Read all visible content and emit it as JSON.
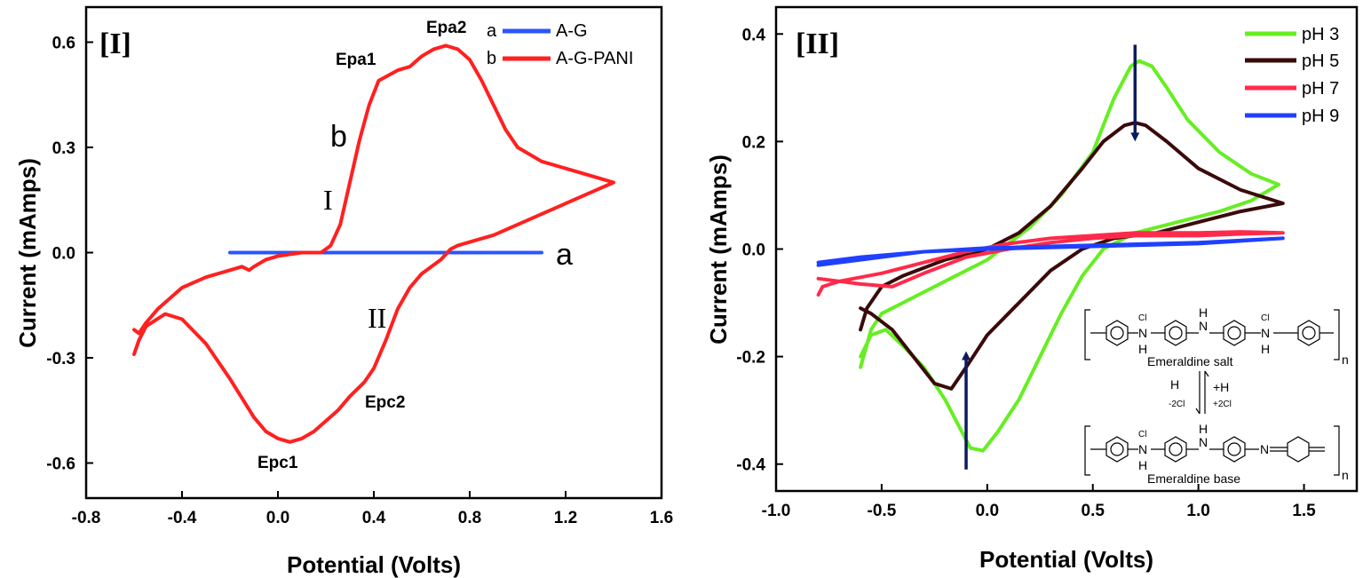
{
  "chart_data": [
    {
      "type": "line",
      "panel_label": "[I]",
      "xlabel": "Potential (Volts)",
      "ylabel": "Current (mAmps)",
      "xlim": [
        -0.8,
        1.6
      ],
      "ylim": [
        -0.7,
        0.7
      ],
      "xticks": [
        -0.8,
        -0.4,
        0.0,
        0.4,
        0.8,
        1.2,
        1.6
      ],
      "yticks": [
        -0.6,
        -0.3,
        0.0,
        0.3,
        0.6
      ],
      "xtick_labels": [
        "-0.8",
        "-0.4",
        "0.0",
        "0.4",
        "0.8",
        "1.2",
        "1.6"
      ],
      "ytick_labels": [
        "-0.6",
        "-0.3",
        "0.0",
        "0.3",
        "0.6"
      ],
      "legend_position": "top-right",
      "series": [
        {
          "key": "a",
          "name": "A-G",
          "color": "#2b54ff",
          "points": [
            [
              -0.2,
              0.0
            ],
            [
              1.1,
              0.0
            ]
          ]
        },
        {
          "key": "b",
          "name": "A-G-PANI",
          "color": "#ff2020",
          "points": [
            [
              -0.6,
              -0.22
            ],
            [
              -0.58,
              -0.23
            ],
            [
              -0.55,
              -0.2
            ],
            [
              -0.5,
              -0.16
            ],
            [
              -0.4,
              -0.1
            ],
            [
              -0.3,
              -0.07
            ],
            [
              -0.2,
              -0.05
            ],
            [
              -0.15,
              -0.04
            ],
            [
              -0.12,
              -0.05
            ],
            [
              -0.1,
              -0.04
            ],
            [
              -0.05,
              -0.02
            ],
            [
              0.0,
              -0.01
            ],
            [
              0.1,
              0.0
            ],
            [
              0.18,
              0.0
            ],
            [
              0.22,
              0.02
            ],
            [
              0.26,
              0.08
            ],
            [
              0.3,
              0.2
            ],
            [
              0.34,
              0.32
            ],
            [
              0.38,
              0.42
            ],
            [
              0.42,
              0.49
            ],
            [
              0.5,
              0.52
            ],
            [
              0.55,
              0.53
            ],
            [
              0.6,
              0.56
            ],
            [
              0.65,
              0.58
            ],
            [
              0.7,
              0.59
            ],
            [
              0.75,
              0.58
            ],
            [
              0.8,
              0.55
            ],
            [
              0.85,
              0.49
            ],
            [
              0.9,
              0.42
            ],
            [
              0.95,
              0.35
            ],
            [
              1.0,
              0.3
            ],
            [
              1.1,
              0.26
            ],
            [
              1.2,
              0.24
            ],
            [
              1.3,
              0.22
            ],
            [
              1.4,
              0.2
            ],
            [
              1.3,
              0.17
            ],
            [
              1.2,
              0.14
            ],
            [
              1.1,
              0.11
            ],
            [
              1.0,
              0.08
            ],
            [
              0.9,
              0.05
            ],
            [
              0.8,
              0.03
            ],
            [
              0.75,
              0.02
            ],
            [
              0.72,
              0.01
            ],
            [
              0.68,
              -0.02
            ],
            [
              0.6,
              -0.06
            ],
            [
              0.55,
              -0.1
            ],
            [
              0.5,
              -0.16
            ],
            [
              0.45,
              -0.25
            ],
            [
              0.4,
              -0.33
            ],
            [
              0.36,
              -0.37
            ],
            [
              0.3,
              -0.41
            ],
            [
              0.25,
              -0.45
            ],
            [
              0.2,
              -0.48
            ],
            [
              0.15,
              -0.51
            ],
            [
              0.1,
              -0.53
            ],
            [
              0.05,
              -0.54
            ],
            [
              0.0,
              -0.53
            ],
            [
              -0.05,
              -0.51
            ],
            [
              -0.1,
              -0.47
            ],
            [
              -0.2,
              -0.36
            ],
            [
              -0.3,
              -0.26
            ],
            [
              -0.4,
              -0.19
            ],
            [
              -0.47,
              -0.175
            ],
            [
              -0.55,
              -0.21
            ],
            [
              -0.58,
              -0.25
            ],
            [
              -0.6,
              -0.29
            ]
          ]
        }
      ],
      "annotations": {
        "Epa1": "Epa1",
        "Epa2": "Epa2",
        "Epc1": "Epc1",
        "Epc2": "Epc2",
        "b": "b",
        "a": "a",
        "I": "I",
        "II": "II"
      }
    },
    {
      "type": "line",
      "panel_label": "[II]",
      "xlabel": "Potential (Volts)",
      "ylabel": "Current (mAmps)",
      "xlim": [
        -1.0,
        1.75
      ],
      "ylim": [
        -0.45,
        0.45
      ],
      "xticks": [
        -1.0,
        -0.5,
        0.0,
        0.5,
        1.0,
        1.5
      ],
      "yticks": [
        -0.4,
        -0.2,
        0.0,
        0.2,
        0.4
      ],
      "xtick_labels": [
        "-1.0",
        "-0.5",
        "0.0",
        "0.5",
        "1.0",
        "1.5"
      ],
      "ytick_labels": [
        "-0.4",
        "-0.2",
        "0.0",
        "0.2",
        "0.4"
      ],
      "legend_position": "top-right",
      "series": [
        {
          "name": "pH 3",
          "color": "#66ee22",
          "points": [
            [
              -0.6,
              -0.22
            ],
            [
              -0.55,
              -0.15
            ],
            [
              -0.5,
              -0.12
            ],
            [
              -0.4,
              -0.1
            ],
            [
              -0.2,
              -0.06
            ],
            [
              0.0,
              -0.02
            ],
            [
              0.2,
              0.04
            ],
            [
              0.35,
              0.1
            ],
            [
              0.5,
              0.18
            ],
            [
              0.6,
              0.28
            ],
            [
              0.68,
              0.34
            ],
            [
              0.72,
              0.35
            ],
            [
              0.78,
              0.34
            ],
            [
              0.85,
              0.3
            ],
            [
              0.95,
              0.24
            ],
            [
              1.1,
              0.18
            ],
            [
              1.25,
              0.14
            ],
            [
              1.38,
              0.12
            ],
            [
              1.25,
              0.09
            ],
            [
              1.1,
              0.07
            ],
            [
              0.9,
              0.05
            ],
            [
              0.7,
              0.03
            ],
            [
              0.55,
              0.0
            ],
            [
              0.45,
              -0.05
            ],
            [
              0.35,
              -0.12
            ],
            [
              0.25,
              -0.2
            ],
            [
              0.15,
              -0.28
            ],
            [
              0.05,
              -0.34
            ],
            [
              -0.02,
              -0.375
            ],
            [
              -0.08,
              -0.37
            ],
            [
              -0.12,
              -0.34
            ],
            [
              -0.2,
              -0.28
            ],
            [
              -0.3,
              -0.22
            ],
            [
              -0.4,
              -0.18
            ],
            [
              -0.48,
              -0.15
            ],
            [
              -0.55,
              -0.16
            ],
            [
              -0.6,
              -0.2
            ]
          ]
        },
        {
          "name": "pH 5",
          "color": "#3a0a0a",
          "points": [
            [
              -0.6,
              -0.15
            ],
            [
              -0.57,
              -0.11
            ],
            [
              -0.5,
              -0.07
            ],
            [
              -0.4,
              -0.05
            ],
            [
              -0.2,
              -0.02
            ],
            [
              0.0,
              0.0
            ],
            [
              0.15,
              0.03
            ],
            [
              0.3,
              0.08
            ],
            [
              0.45,
              0.15
            ],
            [
              0.55,
              0.2
            ],
            [
              0.65,
              0.23
            ],
            [
              0.7,
              0.235
            ],
            [
              0.75,
              0.23
            ],
            [
              0.85,
              0.2
            ],
            [
              1.0,
              0.15
            ],
            [
              1.2,
              0.11
            ],
            [
              1.4,
              0.085
            ],
            [
              1.2,
              0.07
            ],
            [
              1.0,
              0.05
            ],
            [
              0.8,
              0.03
            ],
            [
              0.6,
              0.02
            ],
            [
              0.45,
              0.0
            ],
            [
              0.3,
              -0.04
            ],
            [
              0.15,
              -0.1
            ],
            [
              0.0,
              -0.16
            ],
            [
              -0.1,
              -0.22
            ],
            [
              -0.17,
              -0.26
            ],
            [
              -0.25,
              -0.25
            ],
            [
              -0.35,
              -0.2
            ],
            [
              -0.45,
              -0.15
            ],
            [
              -0.55,
              -0.12
            ],
            [
              -0.6,
              -0.11
            ]
          ]
        },
        {
          "name": "pH 7",
          "color": "#ff2a4a",
          "points": [
            [
              -0.8,
              -0.085
            ],
            [
              -0.78,
              -0.07
            ],
            [
              -0.7,
              -0.06
            ],
            [
              -0.5,
              -0.045
            ],
            [
              -0.3,
              -0.025
            ],
            [
              -0.1,
              -0.005
            ],
            [
              0.1,
              0.01
            ],
            [
              0.3,
              0.02
            ],
            [
              0.5,
              0.025
            ],
            [
              0.7,
              0.03
            ],
            [
              1.0,
              0.03
            ],
            [
              1.2,
              0.032
            ],
            [
              1.4,
              0.03
            ],
            [
              1.2,
              0.028
            ],
            [
              1.0,
              0.025
            ],
            [
              0.7,
              0.025
            ],
            [
              0.5,
              0.02
            ],
            [
              0.3,
              0.012
            ],
            [
              0.1,
              0.0
            ],
            [
              -0.1,
              -0.015
            ],
            [
              -0.3,
              -0.045
            ],
            [
              -0.45,
              -0.07
            ],
            [
              -0.6,
              -0.065
            ],
            [
              -0.7,
              -0.06
            ],
            [
              -0.8,
              -0.055
            ]
          ]
        },
        {
          "name": "pH 9",
          "color": "#2040ff",
          "points": [
            [
              -0.8,
              -0.025
            ],
            [
              -0.6,
              -0.015
            ],
            [
              -0.3,
              -0.005
            ],
            [
              0.0,
              0.0
            ],
            [
              0.5,
              0.005
            ],
            [
              1.0,
              0.01
            ],
            [
              1.4,
              0.02
            ],
            [
              1.0,
              0.012
            ],
            [
              0.5,
              0.007
            ],
            [
              0.0,
              0.002
            ],
            [
              -0.3,
              -0.005
            ],
            [
              -0.6,
              -0.02
            ],
            [
              -0.8,
              -0.03
            ]
          ]
        }
      ],
      "arrows": [
        {
          "x": 0.7,
          "y_from": 0.38,
          "y_to": 0.2,
          "color": "#0b1b5e"
        },
        {
          "x": -0.1,
          "y_from": -0.41,
          "y_to": -0.19,
          "color": "#0b1b5e"
        }
      ],
      "inset": {
        "salt_label": "Emeraldine salt",
        "base_label": "Emeraldine base",
        "cl_minus": "Cl",
        "n_sub": "n",
        "h_atom": "H",
        "n_atom": "N",
        "forward_reagent": "H",
        "forward_cl": "-2Cl",
        "reverse_reagent": "+H",
        "reverse_cl": "+2Cl"
      }
    }
  ]
}
